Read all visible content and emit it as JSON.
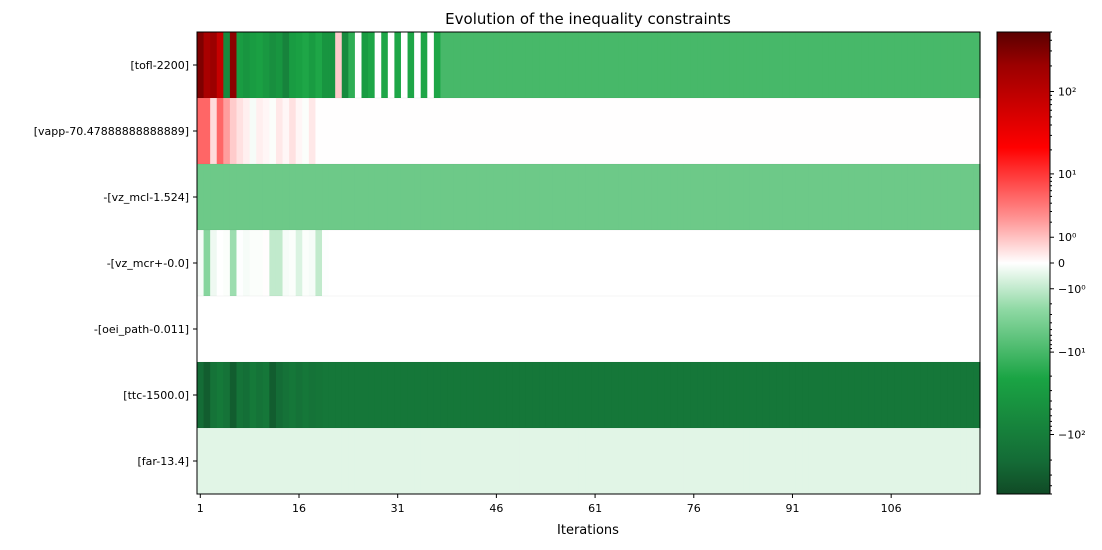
{
  "chart_data": {
    "type": "heatmap",
    "title": "Evolution of the inequality constraints",
    "xlabel": "Iterations",
    "ylabel": "",
    "rows": [
      "[tofl-2200]",
      "[vapp-70.47888888888889]",
      "-[vz_mcl-1.524]",
      "-[vz_mcr+-0.0]",
      "-[oei_path-0.011]",
      "[ttc-1500.0]",
      "[far-13.4]"
    ],
    "n_iterations": 119,
    "x_ticks": [
      1,
      16,
      31,
      46,
      61,
      76,
      91,
      106
    ],
    "colorbar": {
      "scale": "symlog",
      "range": [
        -500,
        500
      ],
      "ticks": [
        {
          "value": 100,
          "label": "10²"
        },
        {
          "value": 10,
          "label": "10¹"
        },
        {
          "value": 1,
          "label": "10⁰"
        },
        {
          "value": 0,
          "label": "0"
        },
        {
          "value": -1,
          "label": "−10⁰"
        },
        {
          "value": -10,
          "label": "−10¹"
        },
        {
          "value": -100,
          "label": "−10²"
        }
      ],
      "colors": {
        "max": "#5a0000",
        "pos": "#ff0000",
        "zero": "#ffffff",
        "neg": "#1aa444",
        "min": "#104a26"
      }
    },
    "heatmap_values": {
      "tofl_initial": [
        300,
        150,
        200,
        80,
        -60,
        250,
        -30,
        -40,
        -30,
        -25,
        -35,
        -50,
        -40,
        -80,
        -30,
        -25,
        -20,
        -30,
        -20,
        -40,
        -40,
        0.8,
        -60,
        -15,
        0,
        -30,
        -20,
        0,
        -20,
        0,
        -20,
        0,
        -20,
        0,
        -20,
        0,
        -20
      ],
      "tofl_tail": -10,
      "vapp_initial": [
        5,
        5,
        0.5,
        5,
        2,
        0.8,
        0.4,
        0.2,
        -0.1,
        0.2,
        0.1,
        -0.05,
        0.3,
        0.1,
        0.4,
        0.1,
        -0.05,
        0.3,
        0.01,
        0.01
      ],
      "vapp_tail": 0.01,
      "vz_mcl": -5,
      "vz_mcr_initial": [
        -0.1,
        -3,
        -0.2,
        0,
        -0.05,
        -2,
        -0.02,
        -0.1,
        -0.05,
        -0.05,
        0.02,
        -1,
        -1,
        -0.1,
        -0.05,
        -0.5,
        -0.05,
        -0.1,
        -1,
        -0.02
      ],
      "vz_mcr_tail": 0,
      "oei_path": 0,
      "ttc_initial": [
        -200,
        -300,
        -150,
        -120,
        -150,
        -300,
        -150,
        -180,
        -120,
        -150,
        -130,
        -300,
        -200,
        -160,
        -130,
        -160,
        -130,
        -150,
        -140
      ],
      "ttc_tail": -130,
      "far": -0.4
    }
  }
}
